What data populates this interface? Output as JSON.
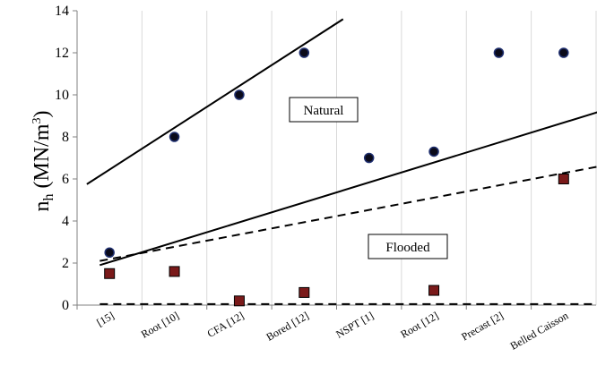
{
  "chart_data": {
    "type": "scatter",
    "categories": [
      "[15]",
      "Root [10]",
      "CFA [12]",
      "Bored [12]",
      "NSPT [1]",
      "Root [12]",
      "Precast [2]",
      "Belled Caisson"
    ],
    "ylabel_main": "n",
    "ylabel_sub": "h",
    "ylabel_unit_open": " (MN/m",
    "ylabel_unit_sup": "3",
    "ylabel_unit_close": ")",
    "ylim": [
      0,
      14
    ],
    "yticks": [
      "0",
      "2",
      "4",
      "6",
      "8",
      "10",
      "12",
      "14"
    ],
    "grid": "vertical",
    "series": [
      {
        "name": "Natural",
        "marker": "circle",
        "color": "#000000",
        "points": [
          {
            "x": "[15]",
            "y": 2.5
          },
          {
            "x": "Root [10]",
            "y": 8.0
          },
          {
            "x": "CFA [12]",
            "y": 10.0
          },
          {
            "x": "Bored [12]",
            "y": 12.0
          },
          {
            "x": "NSPT [1]",
            "y": 7.0
          },
          {
            "x": "Root [12]",
            "y": 7.3
          },
          {
            "x": "Precast [2]",
            "y": 12.0
          },
          {
            "x": "Belled Caisson",
            "y": 12.0
          }
        ]
      },
      {
        "name": "Flooded",
        "marker": "square",
        "color": "#7a1a1a",
        "points": [
          {
            "x": "[15]",
            "y": 1.5
          },
          {
            "x": "Root [10]",
            "y": 1.6
          },
          {
            "x": "CFA [12]",
            "y": 0.2
          },
          {
            "x": "Bored [12]",
            "y": 0.6
          },
          {
            "x": "Root [12]",
            "y": 0.7
          },
          {
            "x": "Belled Caisson",
            "y": 6.0
          }
        ]
      }
    ],
    "trend_lines": [
      {
        "style": "solid",
        "from": {
          "x": -0.35,
          "y": 5.75
        },
        "to": {
          "x": 3.6,
          "y": 13.6
        }
      },
      {
        "style": "solid",
        "from": {
          "x": -0.15,
          "y": 1.9
        },
        "to": {
          "x": 7.55,
          "y": 9.2
        }
      },
      {
        "style": "dashed",
        "from": {
          "x": -0.15,
          "y": 2.1
        },
        "to": {
          "x": 7.55,
          "y": 6.6
        }
      },
      {
        "style": "dashed",
        "from": {
          "x": -0.15,
          "y": 0.05
        },
        "to": {
          "x": 7.55,
          "y": 0.05
        }
      }
    ],
    "annotations": [
      {
        "text": "Natural",
        "near": "upper-middle"
      },
      {
        "text": "Flooded",
        "near": "lower-middle"
      }
    ]
  }
}
